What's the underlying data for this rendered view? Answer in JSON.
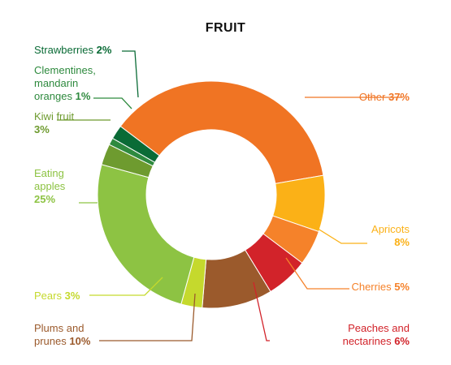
{
  "chart_data": {
    "type": "pie",
    "title": "FRUIT",
    "donut": true,
    "slices": [
      {
        "label": "Other",
        "value": 37,
        "value_label": "37%",
        "color": "#f07423"
      },
      {
        "label": "Apricots",
        "value": 8,
        "value_label": "8%",
        "color": "#fbb117"
      },
      {
        "label": "Cherries",
        "value": 5,
        "value_label": "5%",
        "color": "#f5822a"
      },
      {
        "label": "Peaches and nectarines",
        "value": 6,
        "value_label": "6%",
        "color": "#d2232a"
      },
      {
        "label": "Plums and prunes",
        "value": 10,
        "value_label": "10%",
        "color": "#9b5a2c"
      },
      {
        "label": "Pears",
        "value": 3,
        "value_label": "3%",
        "color": "#c5d92d"
      },
      {
        "label": "Eating apples",
        "value": 25,
        "value_label": "25%",
        "color": "#8dc343"
      },
      {
        "label": "Kiwi fruit",
        "value": 3,
        "value_label": "3%",
        "color": "#6e9b2f"
      },
      {
        "label": "Clementines, mandarin oranges",
        "value": 1,
        "value_label": "1%",
        "color": "#2e8a3e"
      },
      {
        "label": "Strawberries",
        "value": 2,
        "value_label": "2%",
        "color": "#0a6b36"
      }
    ],
    "label_lines": {
      "other": "Other",
      "apricots": "Apricots",
      "cherries": "Cherries",
      "peaches_1": "Peaches and",
      "peaches_2": "nectarines",
      "plums_1": "Plums and",
      "plums_2": "prunes",
      "pears": "Pears",
      "apples_1": "Eating",
      "apples_2": "apples",
      "kiwi_1": "Kiwi fruit",
      "clementines_1": "Clementines,",
      "clementines_2": "mandarin",
      "clementines_3": "oranges",
      "strawberries": "Strawberries"
    }
  }
}
